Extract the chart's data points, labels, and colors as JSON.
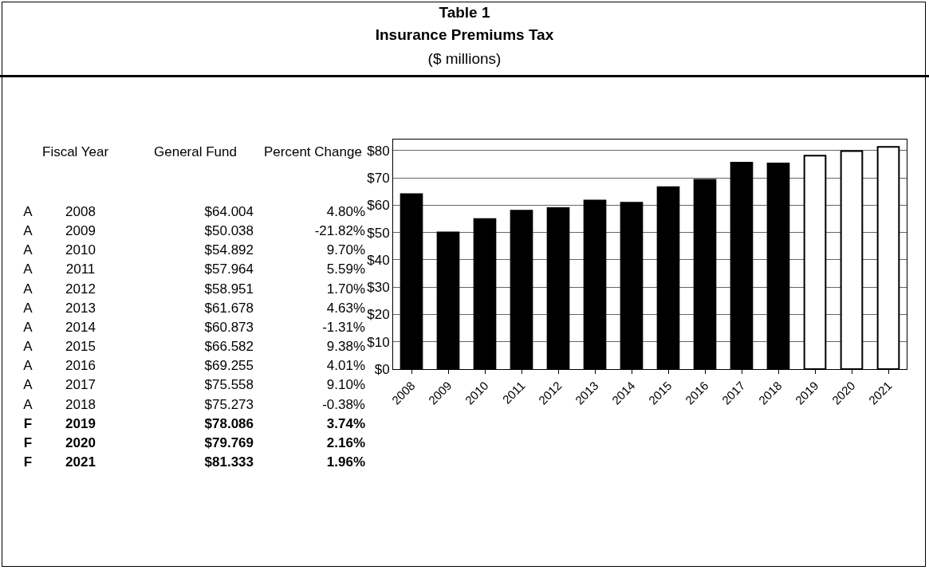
{
  "chart_data": {
    "type": "bar",
    "title": "Table 1",
    "subtitle": "Insurance Premiums Tax",
    "categories": [
      "2008",
      "2009",
      "2010",
      "2011",
      "2012",
      "2013",
      "2014",
      "2015",
      "2016",
      "2017",
      "2018",
      "2019",
      "2020",
      "2021"
    ],
    "series": [
      {
        "color": "#000000",
        "values": [
          64.004,
          50.038,
          54.892,
          57.964,
          58.951,
          61.678,
          60.873,
          66.582,
          69.255,
          75.558,
          75.273,
          78.086,
          79.769,
          81.333
        ],
        "colors": [
          "#000000",
          "#000000",
          "#000000",
          "#000000",
          "#000000",
          "#000000",
          "#000000",
          "#000000",
          "#000000",
          "#000000",
          "#000000",
          "#ffffff",
          "#ffffff",
          "#ffffff"
        ]
      }
    ],
    "annotations": [
      "($ millions)",
      "Fiscal Year",
      "General Fund",
      "Percent Change",
      "A",
      "A",
      "A",
      "A",
      "A",
      "A",
      "A",
      "A",
      "A",
      "A",
      "A",
      "F",
      "F",
      "F",
      "$64.004",
      "$50.038",
      "$54.892",
      "$57.964",
      "$58.951",
      "$61.678",
      "$60.873",
      "$66.582",
      "$69.255",
      "$75.558",
      "$75.273",
      "$78.086",
      "$79.769",
      "$81.333",
      "4.80%",
      "-21.82%",
      "9.70%",
      "5.59%",
      "1.70%",
      "4.63%",
      "-1.31%",
      "9.38%",
      "4.01%",
      "9.10%",
      "-0.38%",
      "3.74%",
      "2.16%",
      "1.96%"
    ],
    "ylim": [
      0,
      84
    ],
    "yticks": [
      {
        "value": 0,
        "label": "$0"
      },
      {
        "value": 10,
        "label": "$10"
      },
      {
        "value": 20,
        "label": "$20"
      },
      {
        "value": 30,
        "label": "$30"
      },
      {
        "value": 40,
        "label": "$40"
      },
      {
        "value": 50,
        "label": "$50"
      },
      {
        "value": 60,
        "label": "$60"
      },
      {
        "value": 70,
        "label": "$70"
      },
      {
        "value": 80,
        "label": "$80"
      }
    ],
    "grid": "y",
    "legend": false
  }
}
